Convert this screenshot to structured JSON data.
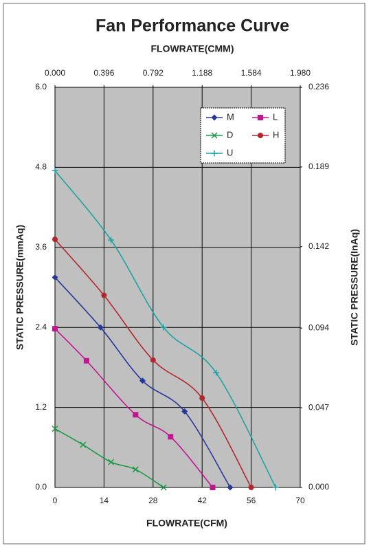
{
  "chart_data": {
    "type": "line",
    "title": "Fan Performance Curve",
    "x_label": "FLOWRATE(CFM)",
    "x2_label": "FLOWRATE(CMM)",
    "y_label": "STATIC PRESSURE(mmAq)",
    "y2_label": "STATIC PRESSURE(InAq)",
    "xlim": [
      0,
      70
    ],
    "xticks": [
      0,
      14,
      28,
      42,
      56,
      70
    ],
    "x2lim": [
      0,
      1.98
    ],
    "x2ticks": [
      {
        "value": 0,
        "label": "0.000"
      },
      {
        "value": 0.396,
        "label": "0.396"
      },
      {
        "value": 0.792,
        "label": "0.792"
      },
      {
        "value": 1.188,
        "label": "1.188"
      },
      {
        "value": 1.584,
        "label": "1.584"
      },
      {
        "value": 1.98,
        "label": "1.980"
      }
    ],
    "ylim": [
      0,
      6
    ],
    "yticks": [
      {
        "value": 0,
        "label": "0.0"
      },
      1.2,
      2.4,
      3.6,
      4.8,
      {
        "value": 6,
        "label": "6.0"
      }
    ],
    "y2lim": [
      0,
      0.236
    ],
    "y2ticks": [
      {
        "value": 0,
        "label": "0.000"
      },
      0.047,
      0.094,
      0.142,
      0.189,
      0.236
    ],
    "grid": true,
    "smooth": true,
    "legend": "top-right",
    "series": [
      {
        "name": "M",
        "color": "#24399a",
        "marker": "diamond",
        "x": [
          0,
          13,
          25,
          37,
          50
        ],
        "values": [
          3.15,
          2.4,
          1.6,
          1.14,
          0
        ]
      },
      {
        "name": "L",
        "color": "#c0168f",
        "marker": "square",
        "x": [
          0,
          9,
          23,
          33,
          45
        ],
        "values": [
          2.38,
          1.9,
          1.09,
          0.76,
          0
        ]
      },
      {
        "name": "D",
        "color": "#1a9a45",
        "marker": "x",
        "x": [
          0,
          8,
          16,
          23,
          31
        ],
        "values": [
          0.88,
          0.64,
          0.38,
          0.27,
          0
        ]
      },
      {
        "name": "H",
        "color": "#b3262b",
        "marker": "circle",
        "x": [
          0,
          14,
          28,
          42,
          56
        ],
        "values": [
          3.72,
          2.88,
          1.91,
          1.34,
          0
        ]
      },
      {
        "name": "U",
        "color": "#1ba3a3",
        "marker": "plus",
        "x": [
          0,
          16,
          31,
          46,
          63
        ],
        "values": [
          4.75,
          3.71,
          2.4,
          1.72,
          0
        ]
      }
    ]
  }
}
